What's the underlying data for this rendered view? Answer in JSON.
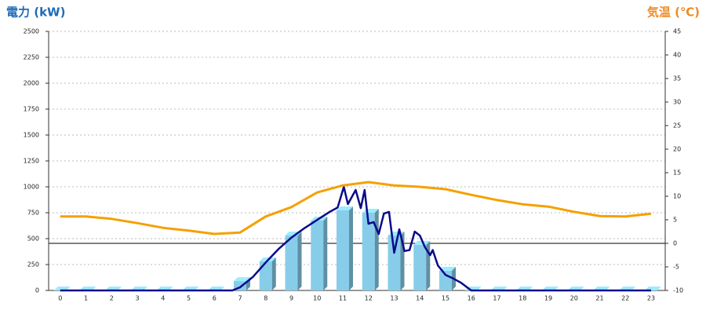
{
  "chart_data": {
    "type": "bar",
    "y_label": "電力 (kW)",
    "y2_label": "気温 (℃)",
    "categories": [
      "0",
      "1",
      "2",
      "3",
      "4",
      "5",
      "6",
      "7",
      "8",
      "9",
      "10",
      "11",
      "12",
      "13",
      "14",
      "15",
      "16",
      "17",
      "18",
      "19",
      "20",
      "21",
      "22",
      "23"
    ],
    "ylim": [
      0,
      2500
    ],
    "yticks": [
      0,
      250,
      500,
      750,
      1000,
      1250,
      1500,
      1750,
      2000,
      2250,
      2500
    ],
    "y2lim": [
      -10,
      45
    ],
    "y2ticks": [
      -10,
      -5,
      0,
      5,
      10,
      15,
      20,
      25,
      30,
      35,
      40,
      45
    ],
    "grid": true,
    "series": [
      {
        "type": "bar",
        "color": "#87cdea",
        "values": [
          0,
          0,
          0,
          0,
          0,
          0,
          0,
          90,
          280,
          530,
          674,
          773,
          750,
          530,
          440,
          190,
          0,
          0,
          0,
          0,
          0,
          0,
          0,
          0
        ]
      },
      {
        "type": "line",
        "color": "#0a0a8c",
        "x": [
          0,
          6.7,
          7,
          7.5,
          8,
          8.5,
          9,
          9.5,
          10,
          10.5,
          10.8,
          11.04,
          11.2,
          11.5,
          11.7,
          11.85,
          12,
          12.2,
          12.4,
          12.6,
          12.8,
          13,
          13.2,
          13.4,
          13.6,
          13.8,
          14,
          14.2,
          14.4,
          14.5,
          14.7,
          15,
          15.3,
          15.6,
          16,
          23
        ],
        "values": [
          0,
          0,
          30,
          130,
          270,
          400,
          510,
          600,
          680,
          760,
          800,
          1000,
          833,
          970,
          795,
          970,
          644,
          660,
          545,
          742,
          758,
          364,
          590,
          380,
          390,
          568,
          530,
          417,
          340,
          390,
          242,
          150,
          115,
          75,
          0,
          0
        ]
      },
      {
        "type": "line",
        "axis": "y2",
        "color": "#f5a000",
        "values": [
          5.7,
          5.7,
          5.2,
          4.3,
          3.3,
          2.7,
          2.0,
          2.3,
          5.7,
          7.7,
          10.8,
          12.3,
          13,
          12.3,
          12,
          11.5,
          10.3,
          9.2,
          8.3,
          7.8,
          6.7,
          5.8,
          5.7,
          6.3
        ]
      }
    ]
  }
}
